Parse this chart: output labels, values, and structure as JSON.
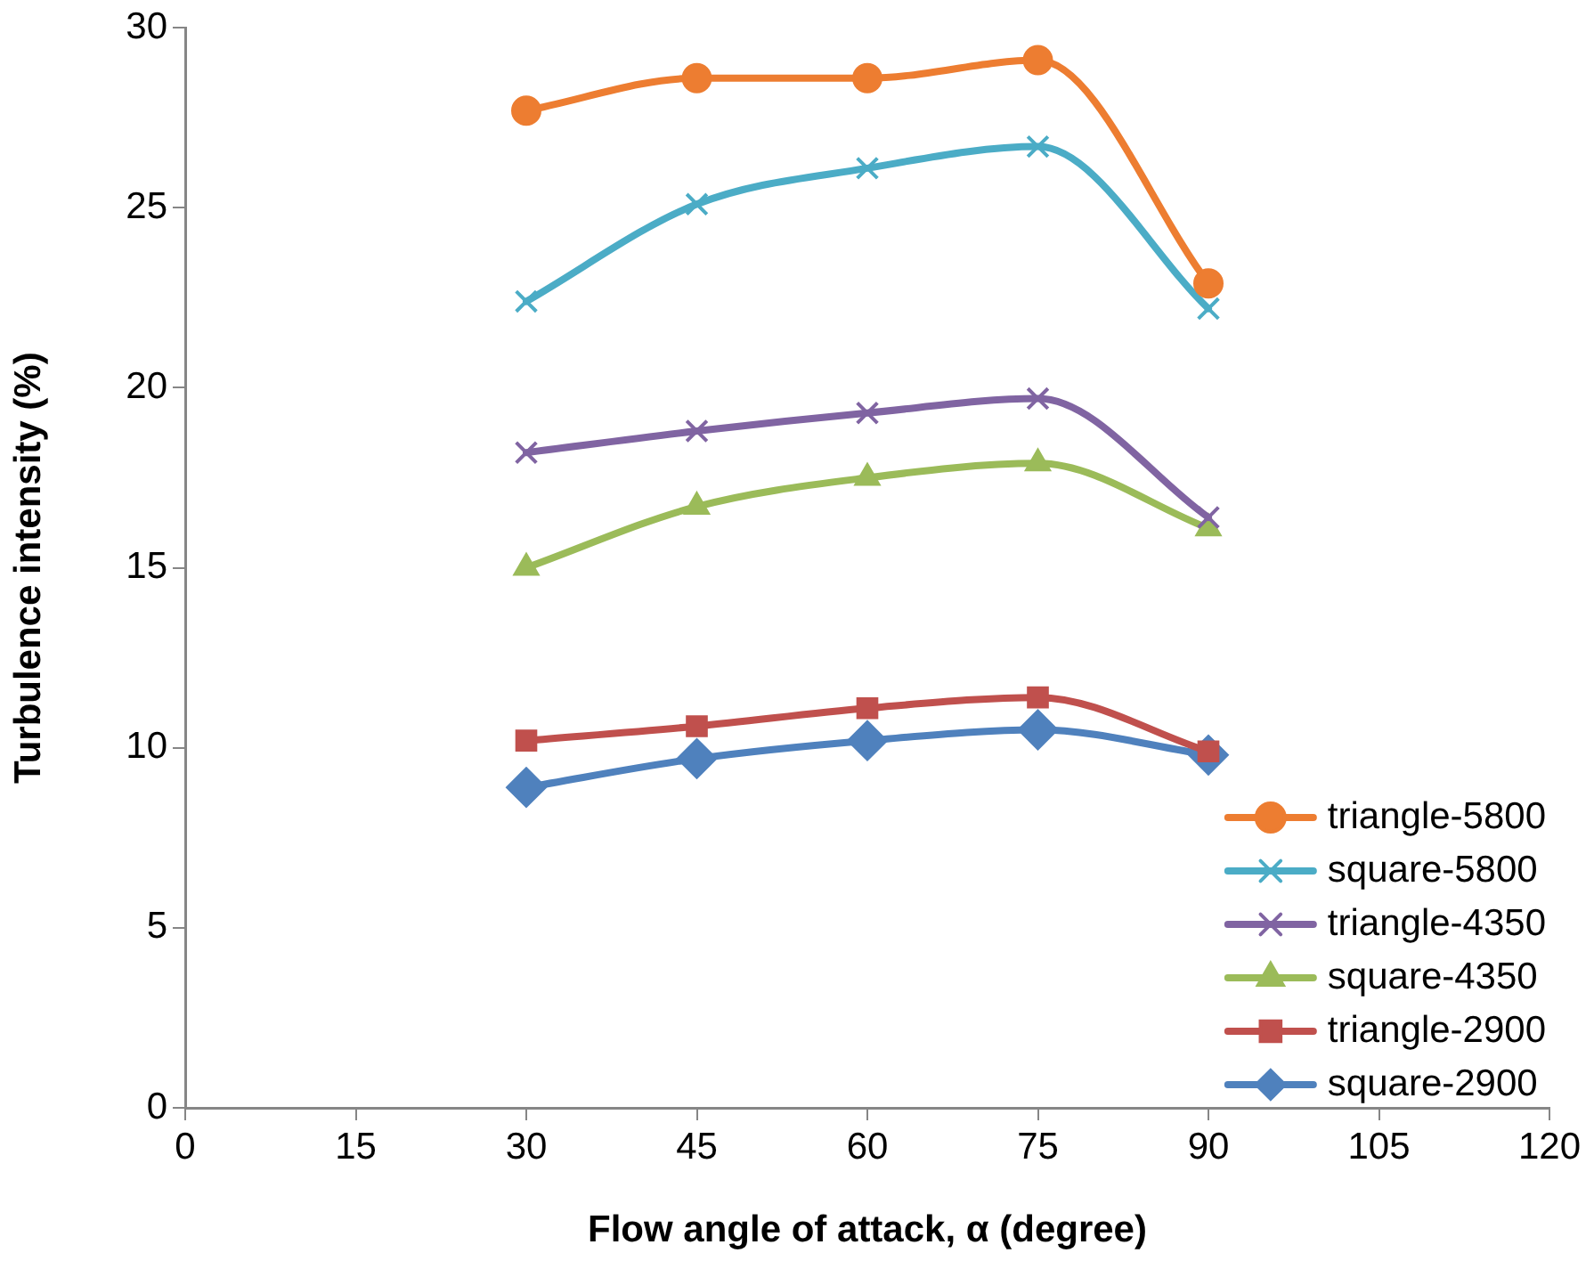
{
  "chart_data": {
    "type": "line",
    "xlabel": "Flow angle of attack, α (degree)",
    "ylabel": "Turbulence intensity (%)",
    "x": [
      30,
      45,
      60,
      75,
      90
    ],
    "xlim": [
      0,
      120
    ],
    "xticks": [
      0,
      15,
      30,
      45,
      60,
      75,
      90,
      105,
      120
    ],
    "ylim": [
      0,
      30
    ],
    "yticks": [
      0,
      5,
      10,
      15,
      20,
      25,
      30
    ],
    "grid": false,
    "legend": "bottom right",
    "line_style": "solid",
    "series": [
      {
        "name": "triangle-5800",
        "color": "#ed7d31",
        "marker": "circle",
        "values": [
          27.7,
          28.6,
          28.6,
          29.1,
          22.9
        ]
      },
      {
        "name": "square-5800",
        "color": "#4bacc6",
        "marker": "cross",
        "values": [
          22.4,
          25.1,
          26.1,
          26.7,
          22.2
        ]
      },
      {
        "name": "triangle-4350",
        "color": "#8064a2",
        "marker": "cross",
        "values": [
          18.2,
          18.8,
          19.3,
          19.7,
          16.4
        ]
      },
      {
        "name": "square-4350",
        "color": "#9bbb59",
        "marker": "triangle",
        "values": [
          15.0,
          16.7,
          17.5,
          17.9,
          16.1
        ]
      },
      {
        "name": "triangle-2900",
        "color": "#c0504d",
        "marker": "square",
        "values": [
          10.2,
          10.6,
          11.1,
          11.4,
          9.9
        ]
      },
      {
        "name": "square-2900",
        "color": "#4f81bd",
        "marker": "diamond",
        "values": [
          8.9,
          9.7,
          10.2,
          10.5,
          9.8
        ]
      }
    ]
  }
}
